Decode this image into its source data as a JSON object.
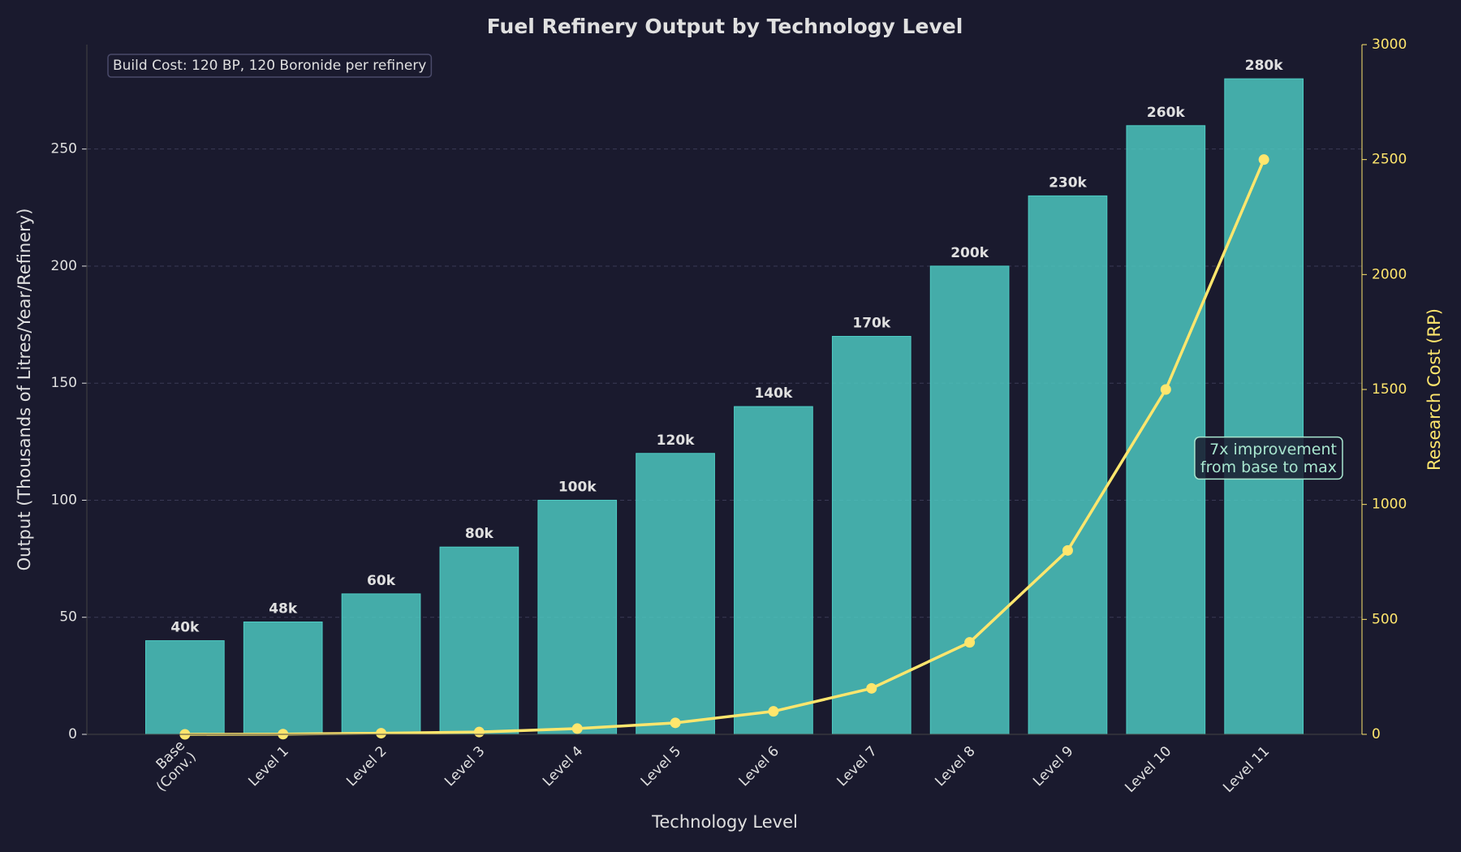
{
  "chart_data": {
    "type": "bar",
    "title": "Fuel Refinery Output by Technology Level",
    "x_label": "Technology Level",
    "y_label": "Output (Thousands of Litres/Year/Refinery)",
    "y2_label": "Research Cost (RP)",
    "categories": [
      "Base\n(Conv.)",
      "Level 1",
      "Level 2",
      "Level 3",
      "Level 4",
      "Level 5",
      "Level 6",
      "Level 7",
      "Level 8",
      "Level 9",
      "Level 10",
      "Level 11"
    ],
    "series": [
      {
        "type": "bar",
        "color": "#4ecdc4",
        "values": [
          40,
          48,
          60,
          80,
          100,
          120,
          140,
          170,
          200,
          230,
          260,
          280
        ],
        "value_labels": [
          "40k",
          "48k",
          "60k",
          "80k",
          "100k",
          "120k",
          "140k",
          "170k",
          "200k",
          "230k",
          "260k",
          "280k"
        ]
      },
      {
        "type": "line",
        "axis": "y2",
        "color": "#ffe66d",
        "values": [
          0,
          1,
          5,
          10,
          25,
          50,
          100,
          200,
          400,
          800,
          1500,
          2500
        ]
      }
    ],
    "ylim": [
      0,
      294.6
    ],
    "yticks": [
      0,
      50,
      100,
      150,
      200,
      250
    ],
    "y2lim": [
      0,
      3000
    ],
    "y2ticks": [
      0,
      500,
      1000,
      1500,
      2000,
      2500,
      3000
    ],
    "grid": true,
    "annotations": [
      "Build Cost: 120 BP, 120 Boronide per refinery",
      "7x improvement\nfrom base to max"
    ]
  }
}
